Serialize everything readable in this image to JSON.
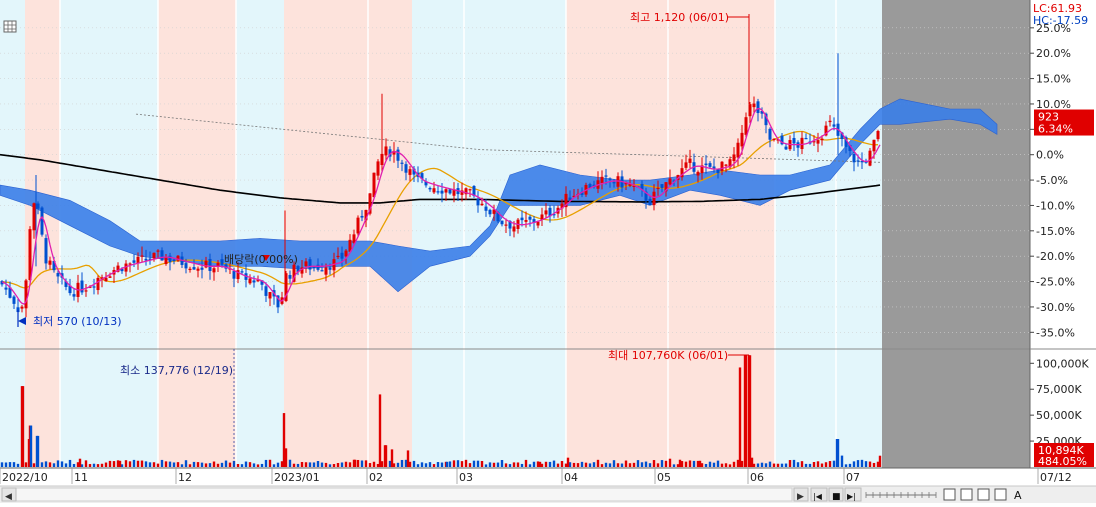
{
  "chart_data": [
    {
      "type": "candlestick",
      "title": "",
      "y_axis": {
        "unit": "percent",
        "ylim": [
          -37.5,
          29.5
        ],
        "tick_values": [
          25,
          20,
          15,
          10,
          5,
          0,
          -5,
          -10,
          -15,
          -20,
          -25,
          -30,
          -35
        ],
        "tick_labels": [
          "25.0%",
          "20.0%",
          "15.0%",
          "10.0%",
          "5.0%",
          "0.0%",
          "-5.0%",
          "-10.0%",
          "-15.0%",
          "-20.0%",
          "-25.0%",
          "-30.0%",
          "-35.0%"
        ]
      },
      "x_axis": {
        "labels": [
          "2022/10",
          "11",
          "12",
          "2023/01",
          "02",
          "03",
          "04",
          "05",
          "06",
          "07",
          "07/12"
        ]
      },
      "last_price": {
        "value": "923",
        "change_label": "6.34%",
        "y": 6.34
      },
      "range_info": {
        "lc_label": "LC:61.93",
        "hc_label": "HC:-17.59"
      },
      "annotations": {
        "high_label": "최고 1,120 (06/01)",
        "low_label": "최저 570 (10/13)",
        "ex_dividend_label": "배당락(0.00%)"
      },
      "overlays": [
        "ichimoku-cloud",
        "moving-average-5",
        "moving-average-20",
        "moving-average-long"
      ],
      "grid": true,
      "shading": "alternating monthly pink / light-cyan bands"
    },
    {
      "type": "bar",
      "title": "",
      "y_axis": {
        "ylim": [
          0,
          108000
        ],
        "tick_values": [
          100000,
          75000,
          50000,
          25000
        ],
        "tick_labels": [
          "100,000K",
          "75,000K",
          "50,000K",
          "25,000K"
        ]
      },
      "last_volume": {
        "value_label": "10,894K",
        "pct_label": "484.05%"
      },
      "annotations": {
        "max_label": "최대 107,760K (06/01)",
        "min_label": "최소 137,776 (12/19)"
      }
    }
  ],
  "toolbar": {
    "scroll_left": "◀",
    "scroll_right": "▶",
    "btn_first": "|◀",
    "btn_stop": "■",
    "btn_last": "▶|",
    "btn_a": "A"
  },
  "colors": {
    "up": "#e00000",
    "down": "#0050d0",
    "cloud": "#3a7ee8",
    "ma5": "#e020b0",
    "ma20": "#e8a000",
    "ma_long": "#000000",
    "band_pink": "#fde3dc",
    "band_cyan": "#e3f6fb",
    "future_area": "#9a9a9a"
  }
}
